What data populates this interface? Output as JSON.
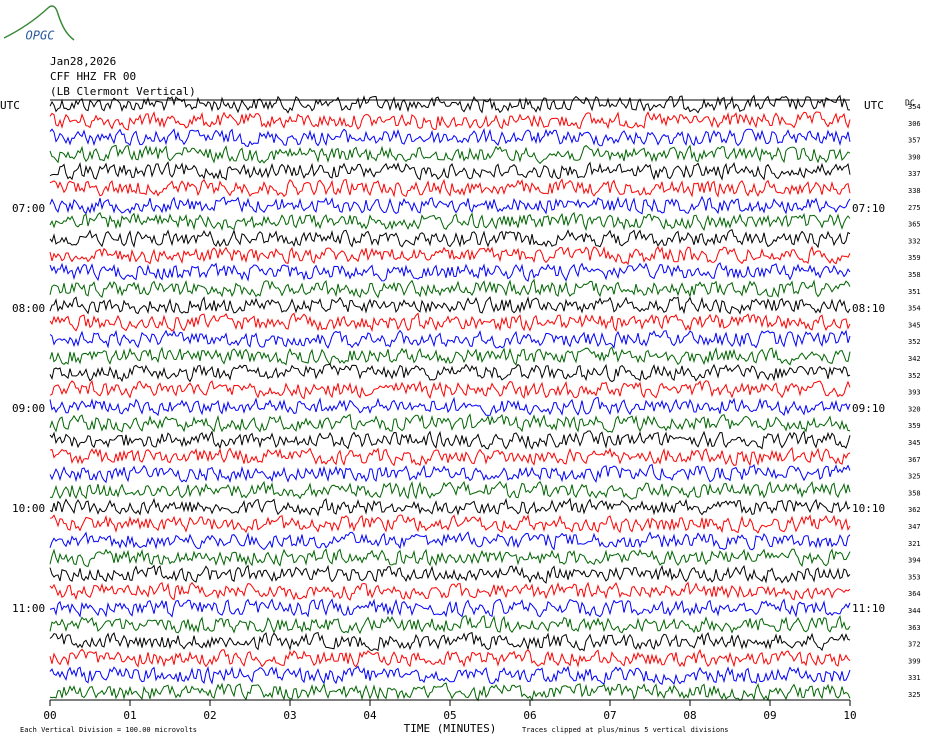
{
  "logo": "OPGC",
  "header": {
    "date": "Jan28,2026",
    "station": "CFF HHZ FR 00",
    "location": "(LB  Clermont Vertical)"
  },
  "left_labels": [
    "UTC",
    "07:00",
    "08:00",
    "09:00",
    "10:00",
    "11:00"
  ],
  "right_labels": [
    "UTC",
    "07:10",
    "08:10",
    "09:10",
    "10:10",
    "11:10"
  ],
  "dc_title": "DC",
  "dc_values": [
    354,
    306,
    357,
    390,
    337,
    338,
    275,
    365,
    332,
    359,
    358,
    351,
    354,
    345,
    352,
    342,
    352,
    393,
    320,
    359,
    345,
    367,
    325,
    358,
    362,
    347,
    321,
    394,
    353,
    364,
    344,
    363,
    372,
    399,
    331,
    325
  ],
  "trace_colors": [
    "#000000",
    "#ff0000",
    "#0000ff",
    "#006400"
  ],
  "x_axis": {
    "title": "TIME (MINUTES)",
    "ticks": [
      {
        "value": 0,
        "label": "00"
      },
      {
        "value": 1,
        "label": "01"
      },
      {
        "value": 2,
        "label": "02"
      },
      {
        "value": 3,
        "label": "03"
      },
      {
        "value": 4,
        "label": "04"
      },
      {
        "value": 5,
        "label": "05"
      },
      {
        "value": 6,
        "label": "06"
      },
      {
        "value": 7,
        "label": "07"
      },
      {
        "value": 8,
        "label": "08"
      },
      {
        "value": 9,
        "label": "09"
      },
      {
        "value": 10,
        "label": "10"
      }
    ],
    "xlim": [
      0,
      10
    ]
  },
  "footer": {
    "scale": "Each Vertical Division =  100.00 microvolts",
    "clip": "Traces clipped at plus/minus 5 vertical divisions"
  }
}
